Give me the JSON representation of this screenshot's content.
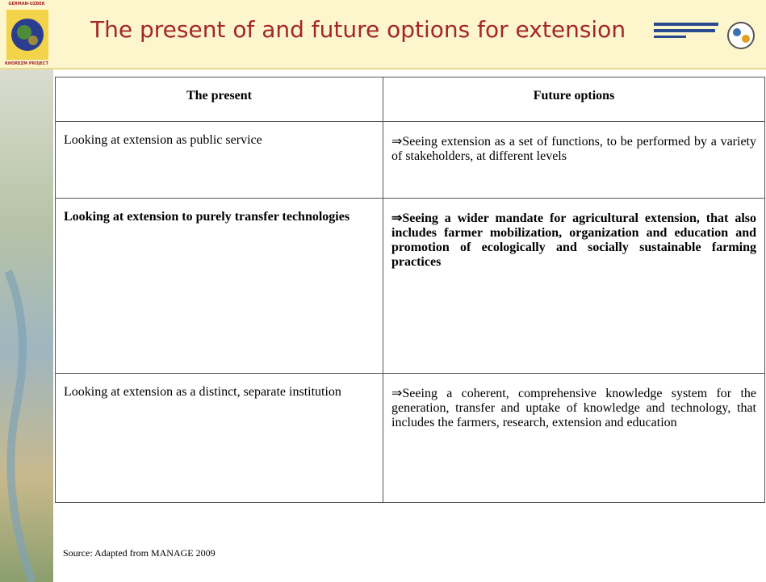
{
  "header": {
    "title": "The present of and future options for extension",
    "logo_top": "GERMAN-UZBEK",
    "logo_bottom": "KHOREZM PROJECT"
  },
  "table": {
    "headers": [
      "The present",
      "Future options"
    ],
    "rows": [
      [
        "Looking at extension as public service",
        "⇒Seeing extension as a set of functions, to be performed by a variety of stakeholders, at different levels"
      ],
      [
        "Looking at extension to purely transfer technologies",
        "⇒Seeing a wider mandate for agricultural extension, that also includes farmer mobilization, organization and education and promotion of ecologically and socially sustainable farming practices"
      ],
      [
        "Looking at extension as a distinct, separate institution",
        "⇒Seeing a coherent, comprehensive knowledge system for the generation, transfer and uptake of knowledge and technology, that includes the farmers, research, extension and education"
      ]
    ]
  },
  "source": "Source: Adapted from MANAGE 2009"
}
